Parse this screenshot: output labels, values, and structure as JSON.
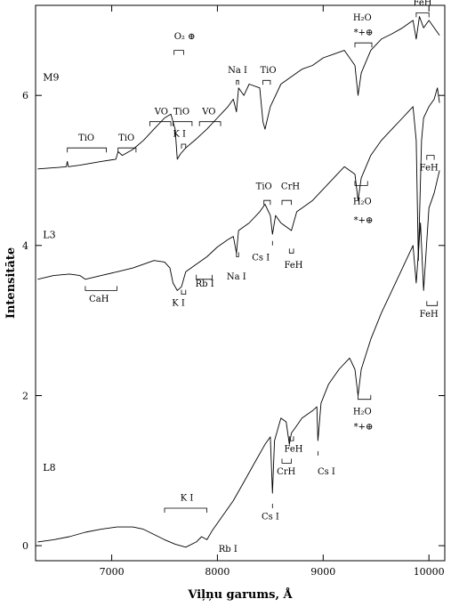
{
  "chart_data": {
    "type": "line",
    "title": "",
    "xlabel": "Viļņu garums, Å",
    "ylabel": "Intensitāte",
    "xlim": [
      6280,
      10150
    ],
    "ylim": [
      -0.2,
      7.2
    ],
    "xticks": [
      7000,
      8000,
      9000,
      10000
    ],
    "yticks": [
      0,
      2,
      4,
      6
    ],
    "grid": false,
    "legend": "none",
    "series": [
      {
        "name": "M9",
        "points": [
          [
            6300,
            5.02
          ],
          [
            6500,
            5.04
          ],
          [
            6570,
            5.05
          ],
          [
            6580,
            5.12
          ],
          [
            6590,
            5.05
          ],
          [
            6700,
            5.07
          ],
          [
            6900,
            5.12
          ],
          [
            7040,
            5.15
          ],
          [
            7060,
            5.25
          ],
          [
            7100,
            5.2
          ],
          [
            7200,
            5.28
          ],
          [
            7300,
            5.4
          ],
          [
            7400,
            5.55
          ],
          [
            7500,
            5.7
          ],
          [
            7560,
            5.75
          ],
          [
            7580,
            5.65
          ],
          [
            7600,
            5.55
          ],
          [
            7620,
            5.15
          ],
          [
            7650,
            5.22
          ],
          [
            7700,
            5.3
          ],
          [
            7800,
            5.42
          ],
          [
            7900,
            5.55
          ],
          [
            8000,
            5.7
          ],
          [
            8100,
            5.85
          ],
          [
            8150,
            5.95
          ],
          [
            8180,
            5.78
          ],
          [
            8200,
            6.1
          ],
          [
            8250,
            6.0
          ],
          [
            8300,
            6.15
          ],
          [
            8400,
            6.1
          ],
          [
            8430,
            5.65
          ],
          [
            8450,
            5.55
          ],
          [
            8500,
            5.85
          ],
          [
            8600,
            6.15
          ],
          [
            8700,
            6.25
          ],
          [
            8800,
            6.35
          ],
          [
            8900,
            6.4
          ],
          [
            9000,
            6.5
          ],
          [
            9100,
            6.55
          ],
          [
            9200,
            6.6
          ],
          [
            9300,
            6.4
          ],
          [
            9330,
            6.0
          ],
          [
            9360,
            6.3
          ],
          [
            9450,
            6.6
          ],
          [
            9550,
            6.75
          ],
          [
            9650,
            6.82
          ],
          [
            9750,
            6.9
          ],
          [
            9850,
            7.0
          ],
          [
            9880,
            6.75
          ],
          [
            9910,
            7.05
          ],
          [
            9950,
            6.9
          ],
          [
            10000,
            7.0
          ],
          [
            10050,
            6.9
          ],
          [
            10100,
            6.8
          ]
        ]
      },
      {
        "name": "L3",
        "points": [
          [
            6300,
            3.55
          ],
          [
            6450,
            3.6
          ],
          [
            6600,
            3.62
          ],
          [
            6700,
            3.6
          ],
          [
            6750,
            3.55
          ],
          [
            6900,
            3.6
          ],
          [
            7050,
            3.65
          ],
          [
            7200,
            3.7
          ],
          [
            7300,
            3.75
          ],
          [
            7400,
            3.8
          ],
          [
            7500,
            3.78
          ],
          [
            7550,
            3.7
          ],
          [
            7580,
            3.5
          ],
          [
            7620,
            3.4
          ],
          [
            7660,
            3.45
          ],
          [
            7700,
            3.65
          ],
          [
            7800,
            3.75
          ],
          [
            7900,
            3.85
          ],
          [
            8000,
            3.98
          ],
          [
            8100,
            4.08
          ],
          [
            8150,
            4.12
          ],
          [
            8180,
            3.9
          ],
          [
            8200,
            4.2
          ],
          [
            8300,
            4.3
          ],
          [
            8400,
            4.45
          ],
          [
            8450,
            4.55
          ],
          [
            8500,
            4.4
          ],
          [
            8520,
            4.15
          ],
          [
            8550,
            4.4
          ],
          [
            8600,
            4.3
          ],
          [
            8650,
            4.25
          ],
          [
            8700,
            4.2
          ],
          [
            8750,
            4.45
          ],
          [
            8800,
            4.5
          ],
          [
            8900,
            4.6
          ],
          [
            9000,
            4.75
          ],
          [
            9100,
            4.9
          ],
          [
            9200,
            5.05
          ],
          [
            9300,
            4.95
          ],
          [
            9330,
            4.6
          ],
          [
            9360,
            4.9
          ],
          [
            9450,
            5.2
          ],
          [
            9550,
            5.4
          ],
          [
            9650,
            5.55
          ],
          [
            9750,
            5.7
          ],
          [
            9850,
            5.85
          ],
          [
            9880,
            5.4
          ],
          [
            9900,
            3.8
          ],
          [
            9930,
            5.4
          ],
          [
            9950,
            5.7
          ],
          [
            10000,
            5.85
          ],
          [
            10050,
            5.95
          ],
          [
            10080,
            6.1
          ],
          [
            10100,
            5.9
          ]
        ]
      },
      {
        "name": "L8",
        "points": [
          [
            6300,
            0.05
          ],
          [
            6450,
            0.08
          ],
          [
            6600,
            0.12
          ],
          [
            6750,
            0.18
          ],
          [
            6900,
            0.22
          ],
          [
            7050,
            0.25
          ],
          [
            7200,
            0.25
          ],
          [
            7300,
            0.22
          ],
          [
            7400,
            0.15
          ],
          [
            7500,
            0.08
          ],
          [
            7600,
            0.02
          ],
          [
            7700,
            -0.02
          ],
          [
            7800,
            0.05
          ],
          [
            7850,
            0.12
          ],
          [
            7900,
            0.08
          ],
          [
            7950,
            0.2
          ],
          [
            8050,
            0.4
          ],
          [
            8150,
            0.6
          ],
          [
            8250,
            0.85
          ],
          [
            8350,
            1.1
          ],
          [
            8450,
            1.35
          ],
          [
            8500,
            1.45
          ],
          [
            8520,
            0.7
          ],
          [
            8540,
            1.4
          ],
          [
            8600,
            1.7
          ],
          [
            8650,
            1.65
          ],
          [
            8680,
            1.35
          ],
          [
            8700,
            1.5
          ],
          [
            8750,
            1.6
          ],
          [
            8800,
            1.7
          ],
          [
            8900,
            1.8
          ],
          [
            8940,
            1.85
          ],
          [
            8950,
            1.4
          ],
          [
            8980,
            1.9
          ],
          [
            9050,
            2.15
          ],
          [
            9150,
            2.35
          ],
          [
            9250,
            2.5
          ],
          [
            9300,
            2.35
          ],
          [
            9330,
            2.0
          ],
          [
            9360,
            2.35
          ],
          [
            9450,
            2.75
          ],
          [
            9550,
            3.1
          ],
          [
            9650,
            3.4
          ],
          [
            9750,
            3.7
          ],
          [
            9850,
            4.0
          ],
          [
            9880,
            3.5
          ],
          [
            9920,
            4.3
          ],
          [
            9950,
            3.4
          ],
          [
            10000,
            4.5
          ],
          [
            10050,
            4.7
          ],
          [
            10100,
            5.0
          ]
        ]
      }
    ],
    "spectrum_labels": [
      {
        "text": "M9",
        "x": 6350,
        "y": 6.2
      },
      {
        "text": "L3",
        "x": 6350,
        "y": 4.1
      },
      {
        "text": "L8",
        "x": 6350,
        "y": 1.0
      }
    ],
    "annotations": [
      {
        "text": "TiO",
        "x": 6760,
        "y": 5.4,
        "bracket": [
          6580,
          6950
        ],
        "bracket_y": 5.3,
        "tick": "down"
      },
      {
        "text": "TiO",
        "x": 7140,
        "y": 5.4,
        "bracket": [
          7060,
          7230
        ],
        "bracket_y": 5.3,
        "tick": "down"
      },
      {
        "text": "VO",
        "x": 7470,
        "y": 5.75,
        "bracket": [
          7360,
          7560
        ],
        "bracket_y": 5.65,
        "tick": "down"
      },
      {
        "text": "TiO",
        "x": 7660,
        "y": 5.75,
        "bracket": [
          7580,
          7760
        ],
        "bracket_y": 5.65,
        "tick": "down"
      },
      {
        "text": "VO",
        "x": 7920,
        "y": 5.75,
        "bracket": [
          7830,
          8030
        ],
        "bracket_y": 5.65,
        "tick": "down"
      },
      {
        "text": "K I",
        "x": 7640,
        "y": 5.45,
        "bracket": [
          7660,
          7700
        ],
        "bracket_y": 5.35,
        "tick": "down"
      },
      {
        "text": "O₂ ⊕",
        "x": 7690,
        "y": 6.75,
        "bracket": [
          7590,
          7680
        ],
        "bracket_y": 6.6,
        "tick": "down"
      },
      {
        "text": "Na I",
        "x": 8190,
        "y": 6.3,
        "bracket": [
          8180,
          8200
        ],
        "bracket_y": 6.2,
        "tick": "down"
      },
      {
        "text": "TiO",
        "x": 8480,
        "y": 6.3,
        "bracket": [
          8430,
          8500
        ],
        "bracket_y": 6.2,
        "tick": "down"
      },
      {
        "text": "H₂O",
        "x": 9370,
        "y": 7.0,
        "bracket": [
          9300,
          9460
        ],
        "bracket_y": 6.7,
        "tick": "down"
      },
      {
        "text": "*+⊕",
        "x": 9380,
        "y": 6.8,
        "bracket": null
      },
      {
        "text": "FeH",
        "x": 9940,
        "y": 7.2,
        "bracket": [
          9880,
          10000
        ],
        "bracket_y": 7.1,
        "tick": "down"
      },
      {
        "text": "FeH",
        "x": 10000,
        "y": 5.0,
        "bracket": [
          9980,
          10050
        ],
        "bracket_y": 5.2,
        "tick": "down"
      },
      {
        "text": "TiO",
        "x": 8440,
        "y": 4.75,
        "bracket": [
          8440,
          8500
        ],
        "bracket_y": 4.6,
        "tick": "down"
      },
      {
        "text": "CrH",
        "x": 8690,
        "y": 4.75,
        "bracket": [
          8610,
          8700
        ],
        "bracket_y": 4.6,
        "tick": "down"
      },
      {
        "text": "Cs I",
        "x": 8410,
        "y": 3.8,
        "bracket": [
          8520,
          8520
        ],
        "bracket_y": 4.0,
        "tick": "up"
      },
      {
        "text": "FeH",
        "x": 8720,
        "y": 3.7,
        "bracket": [
          8680,
          8720
        ],
        "bracket_y": 3.9,
        "tick": "up"
      },
      {
        "text": "Na I",
        "x": 8180,
        "y": 3.55,
        "bracket": [
          8180,
          8200
        ],
        "bracket_y": 3.85,
        "tick": "up"
      },
      {
        "text": "Rb I",
        "x": 7880,
        "y": 3.45,
        "bracket": [
          7800,
          7950
        ],
        "bracket_y": 3.55,
        "tick": "up"
      },
      {
        "text": "K I",
        "x": 7630,
        "y": 3.2,
        "bracket": [
          7660,
          7700
        ],
        "bracket_y": 3.35,
        "tick": "up"
      },
      {
        "text": "CaH",
        "x": 6880,
        "y": 3.25,
        "bracket": [
          6750,
          7050
        ],
        "bracket_y": 3.4,
        "tick": "up"
      },
      {
        "text": "H₂O",
        "x": 9370,
        "y": 4.55,
        "bracket": [
          9300,
          9420
        ],
        "bracket_y": 4.8,
        "tick": "up"
      },
      {
        "text": "*+⊕",
        "x": 9380,
        "y": 4.3,
        "bracket": null
      },
      {
        "text": "FeH",
        "x": 10000,
        "y": 3.05,
        "bracket": [
          9980,
          10080
        ],
        "bracket_y": 3.2,
        "tick": "up"
      },
      {
        "text": "H₂O",
        "x": 9370,
        "y": 1.75,
        "bracket": [
          9330,
          9450
        ],
        "bracket_y": 1.95,
        "tick": "up"
      },
      {
        "text": "*+⊕",
        "x": 9380,
        "y": 1.55,
        "bracket": null
      },
      {
        "text": "FeH",
        "x": 8720,
        "y": 1.25,
        "bracket": [
          8680,
          8720
        ],
        "bracket_y": 1.4,
        "tick": "up"
      },
      {
        "text": "CrH",
        "x": 8650,
        "y": 0.95,
        "bracket": [
          8610,
          8700
        ],
        "bracket_y": 1.1,
        "tick": "up"
      },
      {
        "text": "Cs I",
        "x": 9030,
        "y": 0.95,
        "bracket": [
          8950,
          8950
        ],
        "bracket_y": 1.2,
        "tick": "up"
      },
      {
        "text": "Cs I",
        "x": 8500,
        "y": 0.35,
        "bracket": [
          8520,
          8520
        ],
        "bracket_y": 0.5,
        "tick": "up"
      },
      {
        "text": "K I",
        "x": 7710,
        "y": 0.6,
        "bracket": [
          7500,
          7900
        ],
        "bracket_y": 0.5,
        "tick": "down"
      },
      {
        "text": "Rb I",
        "x": 8100,
        "y": -0.08,
        "bracket": null
      }
    ]
  }
}
